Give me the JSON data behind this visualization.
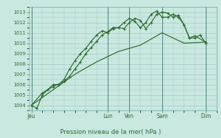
{
  "background_color": "#c8e8e0",
  "grid_color": "#a0c8c0",
  "line_color": "#2d6b2d",
  "title": "Pression niveau de la mer( hPa )",
  "ylim": [
    1003.5,
    1013.5
  ],
  "yticks": [
    1004,
    1005,
    1006,
    1007,
    1008,
    1009,
    1010,
    1011,
    1012,
    1013
  ],
  "x_day_labels": [
    "Jeu",
    "Lun",
    "Ven",
    "Sam",
    "Dim"
  ],
  "x_day_positions": [
    0,
    14,
    18,
    24,
    32
  ],
  "xlim": [
    -0.5,
    34
  ],
  "series1": {
    "x": [
      0,
      1,
      2,
      3,
      4,
      5,
      6,
      7,
      8,
      9,
      10,
      11,
      12,
      13,
      14,
      15,
      16,
      17,
      18,
      19,
      20,
      21,
      22,
      23,
      24,
      25,
      26,
      27,
      28,
      29,
      30,
      31,
      32
    ],
    "y": [
      1004.0,
      1003.7,
      1005.0,
      1005.5,
      1006.0,
      1006.0,
      1006.5,
      1007.5,
      1008.3,
      1009.0,
      1009.5,
      1010.2,
      1010.8,
      1011.2,
      1011.0,
      1011.4,
      1011.5,
      1011.4,
      1012.0,
      1012.4,
      1012.2,
      1011.4,
      1012.0,
      1012.8,
      1013.0,
      1012.9,
      1012.5,
      1012.7,
      1011.8,
      1010.5,
      1010.5,
      1010.8,
      1010.0
    ]
  },
  "series2": {
    "x": [
      0,
      2,
      4,
      6,
      7,
      8,
      9,
      10,
      11,
      12,
      13,
      14,
      15,
      16,
      17,
      18,
      19,
      20,
      21,
      22,
      23,
      24,
      25,
      26,
      27,
      28,
      29,
      30,
      32
    ],
    "y": [
      1004.0,
      1005.2,
      1005.8,
      1006.3,
      1006.8,
      1007.5,
      1008.2,
      1009.0,
      1009.6,
      1010.2,
      1010.8,
      1011.1,
      1011.5,
      1011.5,
      1012.0,
      1012.4,
      1012.1,
      1011.5,
      1012.0,
      1012.8,
      1013.1,
      1012.5,
      1012.5,
      1012.8,
      1012.5,
      1011.8,
      1010.5,
      1010.7,
      1010.1
    ]
  },
  "series3": {
    "x": [
      0,
      4,
      8,
      12,
      16,
      20,
      24,
      28,
      32
    ],
    "y": [
      1004.0,
      1005.5,
      1007.0,
      1008.2,
      1009.2,
      1009.8,
      1011.0,
      1010.0,
      1010.1
    ]
  }
}
